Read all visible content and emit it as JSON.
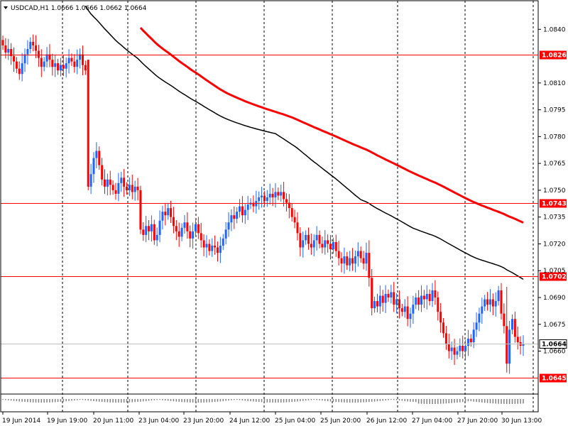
{
  "chart_data": {
    "type": "candlestick",
    "symbol_header": "USDCAD,H1  1.0666 1.0666 1.0662 1.0664",
    "x_tick_labels": [
      "19 Jun 2014",
      "19 Jun 19:00",
      "20 Jun 11:00",
      "23 Jun 04:00",
      "23 Jun 20:00",
      "24 Jun 12:00",
      "25 Jun 04:00",
      "25 Jun 20:00",
      "26 Jun 12:00",
      "27 Jun 04:00",
      "27 Jun 20:00",
      "30 Jun 13:00"
    ],
    "y_tick_labels": [
      "1.0840",
      "1.0810",
      "1.0795",
      "1.0780",
      "1.0765",
      "1.0750",
      "1.0735",
      "1.0720",
      "1.0705",
      "1.0690",
      "1.0675",
      "1.0660"
    ],
    "ylim": [
      1.0636,
      1.0856
    ],
    "horizontal_levels": [
      {
        "label": "1.0826",
        "value": 1.0826,
        "color": "#ff0000"
      },
      {
        "label": "1.0743",
        "value": 1.0743,
        "color": "#ff0000"
      },
      {
        "label": "1.0702",
        "value": 1.0702,
        "color": "#ff0000"
      },
      {
        "label": "1.0645",
        "value": 1.0645,
        "color": "#ff0000"
      }
    ],
    "current_price": {
      "label": "1.0664",
      "value": 1.0664
    },
    "colors": {
      "bull": "#1e64ff",
      "bear": "#ff0000",
      "ma_slow": "#ff0000",
      "ma_fast": "#000000",
      "grid": "#000000",
      "current_line": "#c0c0c0"
    },
    "closes": [
      1.0831,
      1.0827,
      1.0829,
      1.0825,
      1.0822,
      1.0818,
      1.0815,
      1.0821,
      1.0826,
      1.0829,
      1.0833,
      1.0831,
      1.0828,
      1.0824,
      1.0819,
      1.0822,
      1.0826,
      1.0823,
      1.0819,
      1.0821,
      1.0817,
      1.082,
      1.0818,
      1.0821,
      1.0824,
      1.0822,
      1.0819,
      1.0823,
      1.0826,
      1.082,
      1.0817,
      1.0752,
      1.0759,
      1.0768,
      1.0772,
      1.0764,
      1.0756,
      1.0752,
      1.0756,
      1.0753,
      1.075,
      1.0748,
      1.0754,
      1.0757,
      1.0752,
      1.075,
      1.0753,
      1.0749,
      1.0752,
      1.075,
      1.0728,
      1.0725,
      1.073,
      1.0727,
      1.0731,
      1.0722,
      1.0725,
      1.0733,
      1.0738,
      1.0736,
      1.074,
      1.0735,
      1.073,
      1.0727,
      1.0724,
      1.0729,
      1.0732,
      1.0727,
      1.0723,
      1.0727,
      1.0731,
      1.0726,
      1.0722,
      1.0718,
      1.072,
      1.0716,
      1.0719,
      1.0718,
      1.0715,
      1.0719,
      1.0723,
      1.0728,
      1.0732,
      1.0736,
      1.0734,
      1.0738,
      1.0741,
      1.0736,
      1.0739,
      1.0742,
      1.0743,
      1.0741,
      1.0744,
      1.0746,
      1.0747,
      1.0744,
      1.0746,
      1.0748,
      1.0746,
      1.0749,
      1.0747,
      1.0749,
      1.0745,
      1.0743,
      1.074,
      1.0735,
      1.0732,
      1.0726,
      1.0718,
      1.0722,
      1.0725,
      1.072,
      1.0718,
      1.0722,
      1.0725,
      1.072,
      1.0718,
      1.0722,
      1.072,
      1.0717,
      1.0721,
      1.0716,
      1.0712,
      1.0709,
      1.0713,
      1.0708,
      1.0712,
      1.0709,
      1.0713,
      1.0716,
      1.0712,
      1.0709,
      1.0715,
      1.0701,
      1.0684,
      1.0688,
      1.0685,
      1.0691,
      1.0687,
      1.0692,
      1.069,
      1.0693,
      1.0686,
      1.0689,
      1.0684,
      1.0682,
      1.0685,
      1.0678,
      1.0681,
      1.0686,
      1.069,
      1.0686,
      1.0691,
      1.0689,
      1.0692,
      1.0688,
      1.0694,
      1.069,
      1.0682,
      1.0676,
      1.067,
      1.0664,
      1.066,
      1.0662,
      1.0658,
      1.066,
      1.0663,
      1.066,
      1.0663,
      1.0667,
      1.0665,
      1.0672,
      1.0676,
      1.0681,
      1.0685,
      1.0689,
      1.0686,
      1.0689,
      1.0685,
      1.0688,
      1.0694,
      1.0681,
      1.0674,
      1.0653,
      1.0672,
      1.0678,
      1.0668,
      1.0665,
      1.0663,
      1.0664
    ]
  }
}
